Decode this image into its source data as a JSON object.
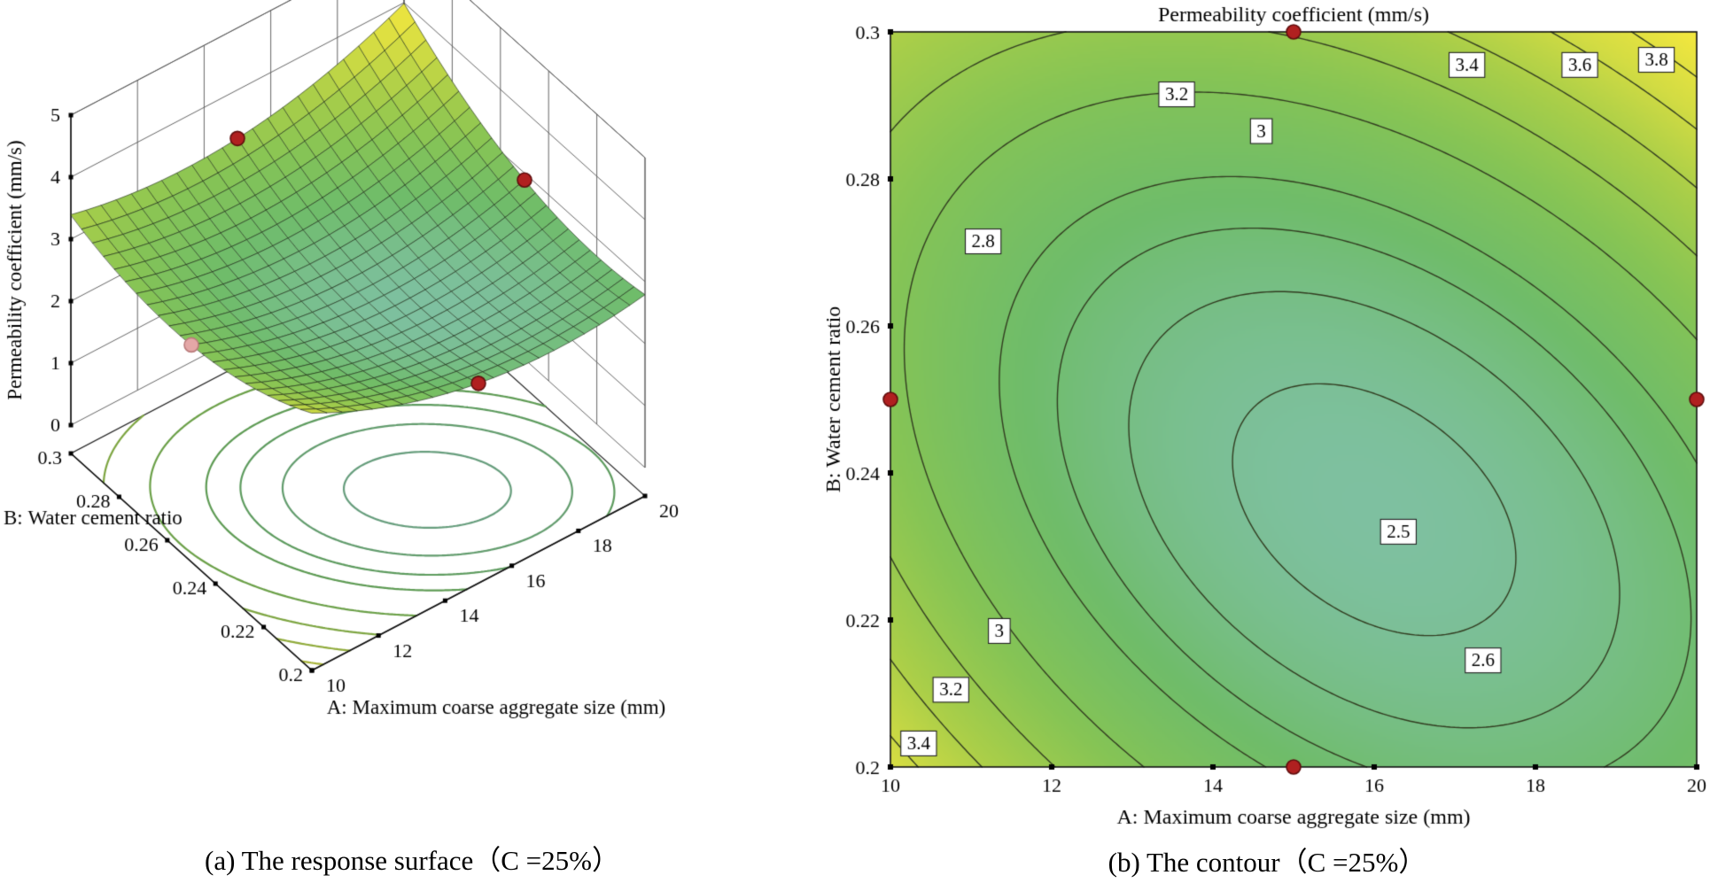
{
  "colors": {
    "background": "#ffffff",
    "contour_line": "#323c20",
    "axis": "#111111",
    "wall_grid": "#555555",
    "design_point_fill": "#b02020",
    "design_point_edge": "#5f0d0d",
    "design_point_faded_fill": "#e4a7a7",
    "design_point_faded_edge": "#b97b7b",
    "colormap_stops": [
      [
        2.45,
        "#7ec0a0"
      ],
      [
        2.75,
        "#6fbc6a"
      ],
      [
        3.05,
        "#86c455"
      ],
      [
        3.35,
        "#a9ce49"
      ],
      [
        3.65,
        "#d3dc43"
      ],
      [
        4.0,
        "#f6e83e"
      ]
    ]
  },
  "chart_data": [
    {
      "type": "surface",
      "caption": "(a) The response surface（C =25%）",
      "zlabel": "Permeability coefficient (mm/s)",
      "xlabel": "A: Maximum coarse aggregate size (mm)",
      "ylabel": "B: Water cement ratio",
      "x_range": [
        10,
        20
      ],
      "x_ticks": [
        10,
        12,
        14,
        16,
        18,
        20
      ],
      "y_range": [
        0.2,
        0.3
      ],
      "y_ticks": [
        0.2,
        0.22,
        0.24,
        0.26,
        0.28,
        0.3
      ],
      "z_range": [
        0,
        5
      ],
      "z_ticks": [
        0,
        1,
        2,
        3,
        4,
        5
      ],
      "surface_model": {
        "form": "z = z_min + p*(A-A0)^2 + q*(B-B0)^2 + r*(A-A0)*(B-B0)",
        "z_min": 2.45,
        "A0": 16,
        "B0": 0.235,
        "p": 0.019,
        "q": 200,
        "r": 1.5
      },
      "floor_contour_levels": [
        2.5,
        2.6,
        2.7,
        2.8,
        3.0,
        3.2,
        3.4,
        3.6
      ],
      "design_points": [
        {
          "A": 15,
          "B": 0.3
        },
        {
          "A": 20,
          "B": 0.25
        },
        {
          "A": 15,
          "B": 0.2
        },
        {
          "A": 10,
          "B": 0.25,
          "faded": true
        }
      ]
    },
    {
      "type": "contour",
      "caption": "(b) The contour（C =25%）",
      "title": "Permeability coefficient (mm/s)",
      "xlabel": "A: Maximum coarse aggregate size (mm)",
      "ylabel": "B: Water cement ratio",
      "x_range": [
        10,
        20
      ],
      "x_ticks": [
        10,
        12,
        14,
        16,
        18,
        20
      ],
      "y_range": [
        0.2,
        0.3
      ],
      "y_ticks": [
        0.2,
        0.22,
        0.24,
        0.26,
        0.28,
        0.3
      ],
      "surface_model": {
        "form": "z = z_min + p*(A-A0)^2 + q*(B-B0)^2 + r*(A-A0)*(B-B0)",
        "z_min": 2.45,
        "A0": 16,
        "B0": 0.235,
        "p": 0.019,
        "q": 200,
        "r": 1.5
      },
      "levels": [
        2.5,
        2.6,
        2.7,
        2.8,
        3.0,
        3.2,
        3.4,
        3.6,
        3.8
      ],
      "contour_labels": [
        {
          "value": "2.5",
          "A": 16.3,
          "B": 0.232
        },
        {
          "value": "2.6",
          "A": 17.35,
          "B": 0.2145
        },
        {
          "value": "2.8",
          "A": 11.15,
          "B": 0.2715
        },
        {
          "value": "3",
          "A": 14.6,
          "B": 0.2865
        },
        {
          "value": "3.2",
          "A": 13.55,
          "B": 0.2915
        },
        {
          "value": "3.4",
          "A": 17.15,
          "B": 0.2955
        },
        {
          "value": "3.6",
          "A": 18.55,
          "B": 0.2955
        },
        {
          "value": "3.8",
          "A": 19.5,
          "B": 0.2962
        },
        {
          "value": "3",
          "A": 11.35,
          "B": 0.2185
        },
        {
          "value": "3.2",
          "A": 10.75,
          "B": 0.2105
        },
        {
          "value": "3.4",
          "A": 10.35,
          "B": 0.2032
        }
      ],
      "design_points": [
        {
          "A": 15,
          "B": 0.3
        },
        {
          "A": 10,
          "B": 0.25
        },
        {
          "A": 20,
          "B": 0.25
        },
        {
          "A": 15,
          "B": 0.2
        }
      ]
    }
  ]
}
